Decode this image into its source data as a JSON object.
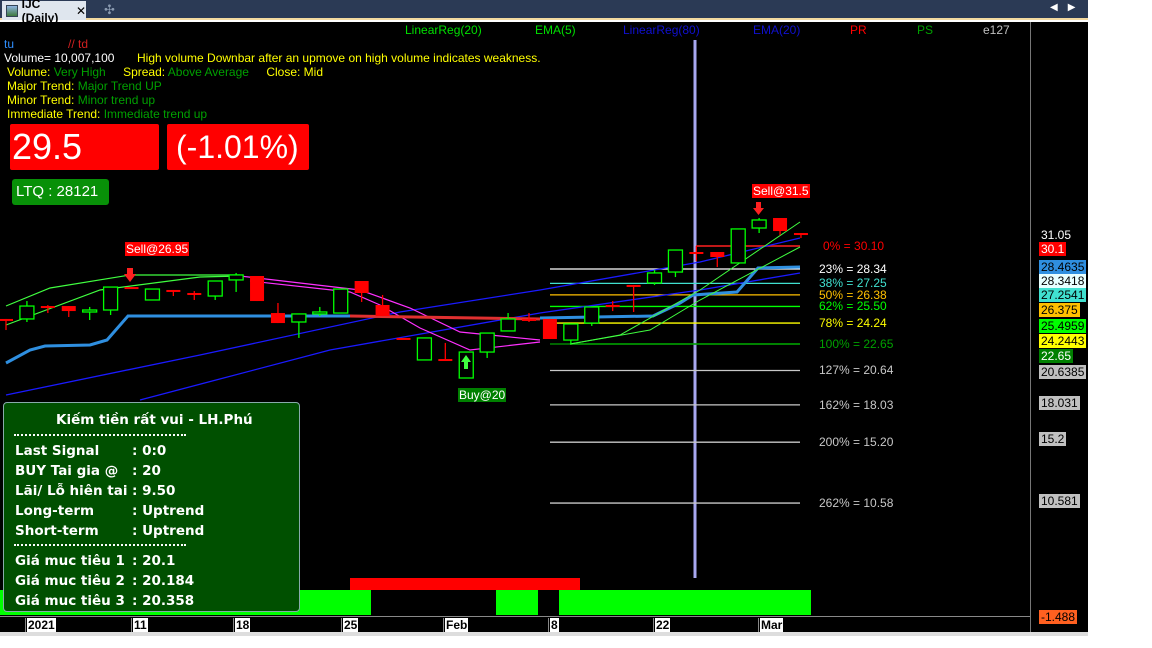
{
  "window": {
    "tab_title": "IJC (Daily)",
    "close": "✕",
    "new_tab": "✣",
    "arrows": "◀▶"
  },
  "legend": {
    "items": [
      {
        "label": "LinearReg(20)",
        "color": "#00e000"
      },
      {
        "label": "EMA(5)",
        "color": "#00e000"
      },
      {
        "label": "LinearReg(80)",
        "color": "#1010d0"
      },
      {
        "label": "EMA(20)",
        "color": "#1010d0"
      },
      {
        "label": "PR",
        "color": "#ff0000"
      },
      {
        "label": "PS",
        "color": "#00a000"
      },
      {
        "label": "e127",
        "color": "#c0c0c0"
      }
    ]
  },
  "info": {
    "tu": "tu",
    "td": "// td",
    "volume": "Volume= 10,007,100",
    "message": "High volume Downbar after an upmove on high volume indicates weakness.",
    "volume_label": "Volume:",
    "volume_value": "Very High",
    "spread_label": "Spread:",
    "spread_value": "Above Average",
    "close_label": "Close:",
    "close_value": "Mid",
    "major_label": "Major Trend:",
    "major_value": "Major Trend UP",
    "minor_label": "Minor Trend:",
    "minor_value": "Minor trend up",
    "immediate_label": "Immediate Trend:",
    "immediate_value": "Immediate trend up"
  },
  "price": {
    "last": "29.5",
    "change": "(-1.01%)",
    "ltq": "LTQ : 28121"
  },
  "signals": {
    "sell1": "Sell@26.95",
    "sell2": "Sell@31.5",
    "buy": "Buy@20"
  },
  "fib": [
    {
      "label": "0% = 30.10",
      "price": 30.1,
      "color": "#ff0000"
    },
    {
      "label": "23% = 28.34",
      "price": 28.34,
      "color": "#ffffff"
    },
    {
      "label": "38% = 27.25",
      "price": 27.25,
      "color": "#40e0d0"
    },
    {
      "label": "50% = 26.38",
      "price": 26.38,
      "color": "#ffc000"
    },
    {
      "label": "62% = 25.50",
      "price": 25.5,
      "color": "#00ff00"
    },
    {
      "label": "78% = 24.24",
      "price": 24.24,
      "color": "#ffff00"
    },
    {
      "label": "100% = 22.65",
      "price": 22.65,
      "color": "#00a000"
    },
    {
      "label": "127% = 20.64",
      "price": 20.64,
      "color": "#c8c8c8"
    },
    {
      "label": "162% = 18.03",
      "price": 18.03,
      "color": "#c8c8c8"
    },
    {
      "label": "200% = 15.20",
      "price": 15.2,
      "color": "#c8c8c8"
    },
    {
      "label": "262% = 10.58",
      "price": 10.58,
      "color": "#c8c8c8"
    }
  ],
  "price_axis": [
    {
      "label": "31.05",
      "bg": "#000000",
      "fg": "#ffffff"
    },
    {
      "label": "30.1",
      "bg": "#ff0000",
      "fg": "#ffffff"
    },
    {
      "label": "28.4635",
      "bg": "#2f8fe0",
      "fg": "#000000"
    },
    {
      "label": "28.3418",
      "bg": "#e8ffff",
      "fg": "#000000"
    },
    {
      "label": "27.2541",
      "bg": "#40e0d0",
      "fg": "#000000"
    },
    {
      "label": "26.375",
      "bg": "#ffc000",
      "fg": "#000000"
    },
    {
      "label": "25.4959",
      "bg": "#00ff00",
      "fg": "#000000"
    },
    {
      "label": "24.2443",
      "bg": "#ffff00",
      "fg": "#000000"
    },
    {
      "label": "22.65",
      "bg": "#008000",
      "fg": "#ffffff"
    },
    {
      "label": "20.6385",
      "bg": "#c0c0c0",
      "fg": "#000000"
    },
    {
      "label": "18.031",
      "bg": "#c0c0c0",
      "fg": "#000000"
    },
    {
      "label": "15.2",
      "bg": "#c0c0c0",
      "fg": "#000000"
    },
    {
      "label": "10.581",
      "bg": "#c0c0c0",
      "fg": "#000000"
    },
    {
      "label": "-1.488",
      "bg": "#ff6020",
      "fg": "#000000"
    }
  ],
  "x_axis": [
    "2021",
    "11",
    "18",
    "25",
    "Feb",
    "8",
    "22",
    "Mar"
  ],
  "panel": {
    "title": "Kiếm tiền rất vui - LH.Phú",
    "rows": [
      {
        "label": "Last Signal",
        "value": ": 0:0"
      },
      {
        "label": "BUY Tai gia @",
        "value": ": 20"
      },
      {
        "label": "Lãi/ Lỗ hiên tai",
        "value": ": 9.50"
      },
      {
        "label": "Long-term",
        "value": ": Uptrend"
      },
      {
        "label": "Short-term",
        "value": ": Uptrend"
      }
    ],
    "targets": [
      {
        "label": "Giá muc tiêu 1",
        "value": ": 20.1"
      },
      {
        "label": "Giá muc tiêu 2",
        "value": ": 20.184"
      },
      {
        "label": "Giá muc tiêu 3",
        "value": ": 20.358"
      }
    ]
  },
  "colors": {
    "up": "#00ff00",
    "down": "#ff0000",
    "background": "#000000"
  },
  "candles": [
    [
      24.55,
      24.55,
      23.71,
      24.5
    ],
    [
      24.55,
      25.91,
      24.32,
      25.53
    ],
    [
      25.53,
      25.6,
      25.0,
      25.5
    ],
    [
      25.53,
      25.53,
      24.7,
      25.15
    ],
    [
      25.08,
      25.46,
      24.47,
      25.23
    ],
    [
      25.23,
      26.97,
      24.85,
      26.97
    ],
    [
      26.97,
      26.97,
      26.9,
      26.92
    ],
    [
      25.99,
      26.82,
      25.99,
      26.82
    ],
    [
      26.75,
      26.75,
      26.29,
      26.7
    ],
    [
      26.52,
      26.67,
      25.99,
      26.48
    ],
    [
      26.29,
      27.43,
      25.99,
      27.43
    ],
    [
      27.51,
      28.04,
      26.6,
      27.89
    ],
    [
      27.81,
      27.81,
      25.91,
      25.91
    ],
    [
      25.0,
      25.76,
      24.24,
      24.24
    ],
    [
      24.32,
      24.93,
      23.11,
      24.93
    ],
    [
      24.93,
      25.46,
      24.77,
      25.08
    ],
    [
      25.0,
      26.82,
      25.0,
      26.82
    ],
    [
      27.43,
      27.43,
      25.84,
      26.52
    ],
    [
      25.61,
      26.37,
      24.77,
      24.77
    ],
    [
      23.11,
      23.11,
      23.11,
      23.08
    ],
    [
      21.44,
      23.11,
      21.44,
      23.11
    ],
    [
      21.51,
      22.73,
      21.51,
      21.48
    ],
    [
      20.07,
      22.04,
      20.07,
      22.04
    ],
    [
      22.04,
      23.48,
      21.59,
      23.48
    ],
    [
      23.64,
      25.0,
      23.64,
      24.55
    ],
    [
      24.55,
      25.0,
      24.32,
      24.5
    ],
    [
      24.55,
      24.55,
      23.03,
      23.03
    ],
    [
      22.95,
      24.17,
      22.65,
      24.17
    ],
    [
      24.24,
      25.46,
      24.02,
      25.46
    ],
    [
      25.61,
      25.91,
      25.15,
      25.56
    ],
    [
      27.13,
      27.13,
      25.08,
      27.08
    ],
    [
      27.28,
      28.26,
      27.13,
      28.04
    ],
    [
      28.11,
      29.78,
      27.73,
      29.78
    ],
    [
      29.63,
      30.09,
      28.95,
      29.58
    ],
    [
      29.63,
      29.63,
      28.49,
      29.25
    ],
    [
      28.8,
      31.38,
      28.8,
      31.38
    ],
    [
      31.45,
      32.21,
      31.07,
      32.06
    ],
    [
      32.21,
      32.21,
      30.92,
      31.22
    ],
    [
      31.07,
      31.07,
      30.69,
      31.02
    ]
  ]
}
